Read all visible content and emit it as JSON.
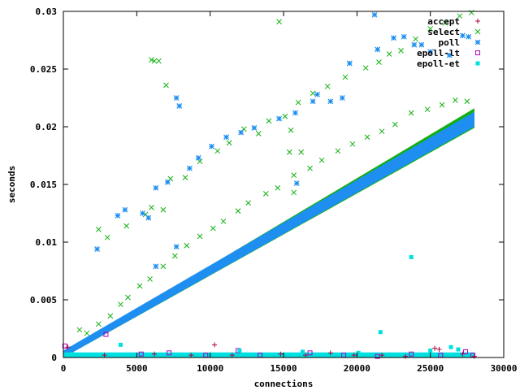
{
  "chart_data": {
    "type": "scatter",
    "title": "",
    "xlabel": "connections",
    "ylabel": "seconds",
    "xlim": [
      0,
      30000
    ],
    "ylim": [
      0,
      0.03
    ],
    "xticks": [
      0,
      5000,
      10000,
      15000,
      20000,
      25000,
      30000
    ],
    "xtick_labels": [
      "0",
      "5000",
      "10000",
      "15000",
      "20000",
      "25000",
      "30000"
    ],
    "yticks": [
      0,
      0.005,
      0.01,
      0.015,
      0.02,
      0.025,
      0.03
    ],
    "ytick_labels": [
      "0",
      "0.005",
      "0.01",
      "0.015",
      "0.02",
      "0.025",
      "0.03"
    ],
    "grid": false,
    "legend_position": "top-right",
    "series": [
      {
        "name": "accept",
        "marker": "plus",
        "color": "#b0003a",
        "points": [
          [
            300,
            0.0009
          ],
          [
            2800,
            0.0002
          ],
          [
            6200,
            0.0003
          ],
          [
            8700,
            0.0002
          ],
          [
            10300,
            0.0011
          ],
          [
            11500,
            0.0002
          ],
          [
            14800,
            0.0003
          ],
          [
            16500,
            0.0002
          ],
          [
            18200,
            0.0004
          ],
          [
            19800,
            0.0002
          ],
          [
            21700,
            0.0002
          ],
          [
            23300,
            0.0001
          ],
          [
            25300,
            0.0008
          ],
          [
            25600,
            0.0007
          ],
          [
            27200,
            0.0003
          ],
          [
            28000,
            0.0001
          ]
        ]
      },
      {
        "name": "select",
        "marker": "x",
        "color": "#10b010",
        "trend": {
          "x": [
            0,
            28000
          ],
          "y_low": [
            0,
            0.0199
          ],
          "y_high": [
            0.0004,
            0.0216
          ]
        },
        "points": [
          [
            1100,
            0.0024
          ],
          [
            1600,
            0.0021
          ],
          [
            2400,
            0.0029
          ],
          [
            3200,
            0.0036
          ],
          [
            3900,
            0.0046
          ],
          [
            4400,
            0.0052
          ],
          [
            5200,
            0.0062
          ],
          [
            5900,
            0.0068
          ],
          [
            6800,
            0.0079
          ],
          [
            7600,
            0.0088
          ],
          [
            8400,
            0.0097
          ],
          [
            9300,
            0.0105
          ],
          [
            10200,
            0.0112
          ],
          [
            10900,
            0.0118
          ],
          [
            11900,
            0.0127
          ],
          [
            12600,
            0.0134
          ],
          [
            13800,
            0.0142
          ],
          [
            14600,
            0.0147
          ],
          [
            15700,
            0.0158
          ],
          [
            16800,
            0.0164
          ],
          [
            17600,
            0.0171
          ],
          [
            18700,
            0.0179
          ],
          [
            19700,
            0.0185
          ],
          [
            20700,
            0.0191
          ],
          [
            21700,
            0.0196
          ],
          [
            22600,
            0.0202
          ],
          [
            23700,
            0.0212
          ],
          [
            24800,
            0.0215
          ],
          [
            25800,
            0.0219
          ],
          [
            26700,
            0.0223
          ],
          [
            27500,
            0.0222
          ],
          [
            2400,
            0.0111
          ],
          [
            3000,
            0.0104
          ],
          [
            4300,
            0.0114
          ],
          [
            6000,
            0.013
          ],
          [
            7300,
            0.0155
          ],
          [
            8300,
            0.0156
          ],
          [
            9300,
            0.017
          ],
          [
            10500,
            0.0179
          ],
          [
            11300,
            0.0186
          ],
          [
            12300,
            0.0198
          ],
          [
            13300,
            0.0194
          ],
          [
            14000,
            0.0205
          ],
          [
            15100,
            0.0209
          ],
          [
            16000,
            0.0221
          ],
          [
            17000,
            0.0229
          ],
          [
            18000,
            0.0235
          ],
          [
            19200,
            0.0243
          ],
          [
            20600,
            0.0251
          ],
          [
            21500,
            0.0256
          ],
          [
            22200,
            0.0263
          ],
          [
            23000,
            0.0266
          ],
          [
            24000,
            0.0276
          ],
          [
            25000,
            0.0285
          ],
          [
            26000,
            0.029
          ],
          [
            27000,
            0.0296
          ],
          [
            27800,
            0.0299
          ],
          [
            6000,
            0.0258
          ],
          [
            6200,
            0.0257
          ],
          [
            6500,
            0.0257
          ],
          [
            7000,
            0.0236
          ],
          [
            14700,
            0.0291
          ],
          [
            15500,
            0.0197
          ],
          [
            15400,
            0.0178
          ],
          [
            16200,
            0.0178
          ],
          [
            15700,
            0.0143
          ],
          [
            6800,
            0.0128
          ],
          [
            5600,
            0.0124
          ]
        ]
      },
      {
        "name": "poll",
        "marker": "star",
        "color": "#1e8ff0",
        "trend": {
          "x": [
            0,
            28000
          ],
          "y_low": [
            0,
            0.02
          ],
          "y_high": [
            0.0006,
            0.0213
          ]
        },
        "points": [
          [
            2300,
            0.0094
          ],
          [
            3700,
            0.0123
          ],
          [
            4200,
            0.0128
          ],
          [
            5400,
            0.0125
          ],
          [
            5800,
            0.0121
          ],
          [
            6300,
            0.0147
          ],
          [
            7100,
            0.0152
          ],
          [
            7700,
            0.0225
          ],
          [
            7900,
            0.0218
          ],
          [
            8600,
            0.0164
          ],
          [
            9200,
            0.0173
          ],
          [
            10100,
            0.0183
          ],
          [
            11100,
            0.0191
          ],
          [
            12100,
            0.0195
          ],
          [
            13000,
            0.0199
          ],
          [
            14700,
            0.0207
          ],
          [
            15800,
            0.0212
          ],
          [
            17000,
            0.0222
          ],
          [
            17300,
            0.0228
          ],
          [
            18200,
            0.0222
          ],
          [
            19000,
            0.0225
          ],
          [
            19500,
            0.0255
          ],
          [
            21400,
            0.0267
          ],
          [
            22500,
            0.0277
          ],
          [
            23200,
            0.0278
          ],
          [
            23900,
            0.0271
          ],
          [
            24400,
            0.0271
          ],
          [
            25000,
            0.0265
          ],
          [
            26300,
            0.0262
          ],
          [
            27200,
            0.0279
          ],
          [
            27600,
            0.0278
          ],
          [
            21200,
            0.0297
          ],
          [
            15900,
            0.0151
          ],
          [
            6300,
            0.0079
          ],
          [
            7700,
            0.0096
          ]
        ]
      },
      {
        "name": "epoll-lt",
        "marker": "open-square",
        "color": "#b000c0",
        "points": [
          [
            100,
            0.001
          ],
          [
            2900,
            0.002
          ],
          [
            5300,
            0.0003
          ],
          [
            7200,
            0.0004
          ],
          [
            9700,
            0.0002
          ],
          [
            11900,
            0.0006
          ],
          [
            13400,
            0.0002
          ],
          [
            16800,
            0.0004
          ],
          [
            19100,
            0.0002
          ],
          [
            21400,
            0.0001
          ],
          [
            23700,
            0.0003
          ],
          [
            25700,
            0.0002
          ],
          [
            27400,
            0.0005
          ],
          [
            27900,
            0.0002
          ]
        ]
      },
      {
        "name": "epoll-et",
        "marker": "filled-square",
        "color": "#00e0e0",
        "band": {
          "x": [
            0,
            28000
          ],
          "y": [
            0,
            0.0003
          ]
        },
        "points": [
          [
            3900,
            0.0011
          ],
          [
            21600,
            0.0022
          ],
          [
            23700,
            0.0087
          ],
          [
            26400,
            0.0009
          ],
          [
            26900,
            0.0007
          ],
          [
            25000,
            0.0006
          ],
          [
            20100,
            0.0004
          ],
          [
            12000,
            0.0006
          ],
          [
            16300,
            0.0005
          ],
          [
            600,
            0.0003
          ]
        ]
      }
    ]
  }
}
